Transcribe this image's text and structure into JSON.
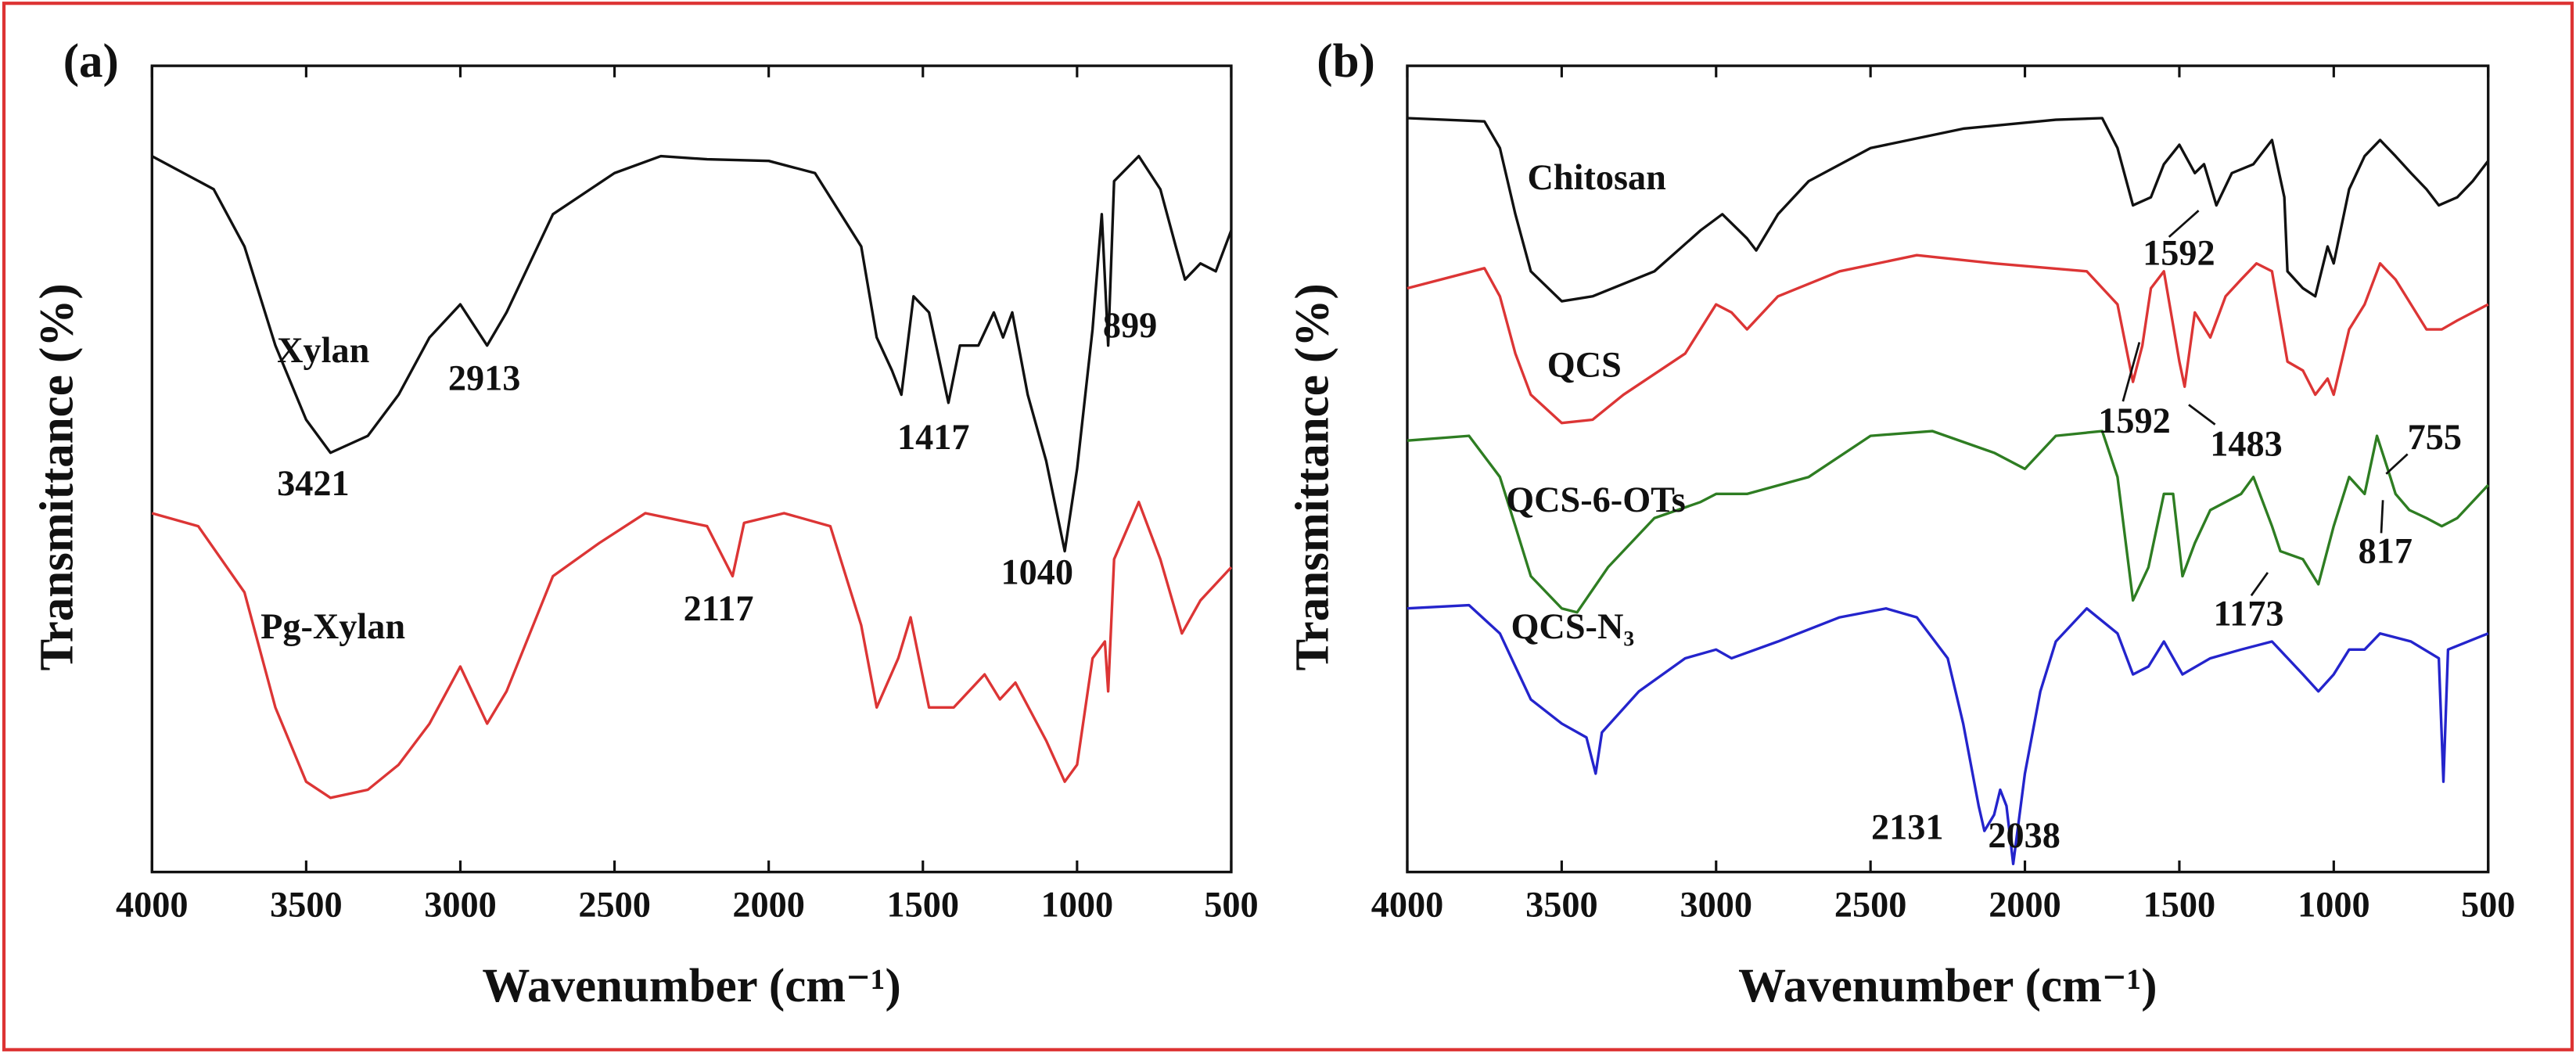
{
  "chart_data": [
    {
      "type": "line",
      "title": "(a)",
      "xlabel": "Wavenumber (cm⁻¹)",
      "ylabel": "Transmittance (%)",
      "xlim": [
        4000,
        500
      ],
      "xticks": [
        4000,
        3500,
        3000,
        2500,
        2000,
        1500,
        1000,
        500
      ],
      "ylim": [
        0,
        100
      ],
      "series": [
        {
          "name": "Xylan",
          "color": "#111111",
          "x": [
            4000,
            3800,
            3700,
            3600,
            3500,
            3421,
            3300,
            3200,
            3100,
            3000,
            2913,
            2850,
            2700,
            2500,
            2350,
            2200,
            2000,
            1850,
            1700,
            1650,
            1600,
            1570,
            1530,
            1480,
            1417,
            1380,
            1320,
            1270,
            1240,
            1210,
            1160,
            1100,
            1040,
            1000,
            950,
            920,
            899,
            880,
            800,
            730,
            680,
            650,
            600,
            550,
            500
          ],
          "values": [
            88.8,
            84.7,
            77.6,
            65.3,
            56.1,
            52.0,
            54.1,
            59.2,
            66.3,
            70.4,
            65.3,
            69.4,
            81.6,
            86.7,
            88.8,
            88.4,
            88.2,
            86.7,
            77.6,
            66.3,
            62.2,
            59.2,
            71.4,
            69.4,
            58.2,
            65.3,
            65.3,
            69.4,
            66.3,
            69.4,
            59.2,
            51.0,
            39.8,
            50.0,
            67.3,
            81.6,
            65.3,
            85.7,
            88.8,
            84.7,
            77.6,
            73.5,
            75.5,
            74.5,
            79.6
          ]
        },
        {
          "name": "Pg-Xylan",
          "color": "#dc3535",
          "x": [
            4000,
            3850,
            3700,
            3600,
            3500,
            3421,
            3300,
            3200,
            3100,
            3000,
            2913,
            2850,
            2700,
            2550,
            2400,
            2200,
            2117,
            2080,
            1950,
            1800,
            1700,
            1650,
            1580,
            1540,
            1480,
            1400,
            1300,
            1250,
            1200,
            1100,
            1040,
            1000,
            950,
            910,
            899,
            880,
            800,
            730,
            660,
            600,
            500
          ],
          "values": [
            44.5,
            42.9,
            34.7,
            20.4,
            11.2,
            9.2,
            10.2,
            13.3,
            18.4,
            25.5,
            18.4,
            22.4,
            36.7,
            40.8,
            44.5,
            42.9,
            36.7,
            43.3,
            44.5,
            42.9,
            30.6,
            20.4,
            26.5,
            31.6,
            20.4,
            20.4,
            24.5,
            21.4,
            23.5,
            16.3,
            11.2,
            13.3,
            26.5,
            28.6,
            22.4,
            38.8,
            45.9,
            38.8,
            29.6,
            33.7,
            37.8
          ]
        }
      ],
      "annotations": [
        "2913",
        "3421",
        "1417",
        "899",
        "1040",
        "2117"
      ]
    },
    {
      "type": "line",
      "title": "(b)",
      "xlabel": "Wavenumber (cm⁻¹)",
      "ylabel": "Transmittance (%)",
      "xlim": [
        4000,
        500
      ],
      "xticks": [
        4000,
        3500,
        3000,
        2500,
        2000,
        1500,
        1000,
        500
      ],
      "ylim": [
        0,
        100
      ],
      "series": [
        {
          "name": "Chitosan",
          "color": "#111111",
          "x": [
            4000,
            3750,
            3700,
            3650,
            3600,
            3500,
            3400,
            3200,
            3050,
            2980,
            2900,
            2870,
            2800,
            2700,
            2500,
            2200,
            1900,
            1750,
            1700,
            1650,
            1592,
            1550,
            1500,
            1450,
            1420,
            1380,
            1330,
            1260,
            1200,
            1160,
            1150,
            1100,
            1060,
            1020,
            1000,
            950,
            900,
            850,
            800,
            750,
            700,
            660,
            600,
            550,
            500
          ],
          "values": [
            93.5,
            93.1,
            89.8,
            81.6,
            74.5,
            70.8,
            71.4,
            74.5,
            79.6,
            81.6,
            78.6,
            77.1,
            81.6,
            85.7,
            89.8,
            92.2,
            93.3,
            93.5,
            89.8,
            82.7,
            83.7,
            87.8,
            90.2,
            86.7,
            87.8,
            82.7,
            86.7,
            87.8,
            90.8,
            83.7,
            74.5,
            72.4,
            71.4,
            77.6,
            75.5,
            84.7,
            88.8,
            90.8,
            88.8,
            86.7,
            84.7,
            82.7,
            83.7,
            85.7,
            88.2
          ]
        },
        {
          "name": "QCS",
          "color": "#dc3535",
          "x": [
            4000,
            3750,
            3700,
            3650,
            3600,
            3500,
            3400,
            3300,
            3100,
            3000,
            2950,
            2900,
            2800,
            2600,
            2350,
            2100,
            1800,
            1700,
            1650,
            1620,
            1592,
            1550,
            1500,
            1483,
            1450,
            1400,
            1350,
            1300,
            1250,
            1200,
            1150,
            1100,
            1060,
            1020,
            1000,
            950,
            900,
            850,
            800,
            750,
            700,
            650,
            600,
            500
          ],
          "values": [
            72.4,
            74.9,
            71.4,
            64.3,
            59.2,
            55.7,
            56.1,
            59.2,
            64.3,
            70.4,
            69.4,
            67.3,
            71.4,
            74.5,
            76.5,
            75.5,
            74.5,
            70.4,
            60.8,
            65.3,
            72.4,
            74.5,
            63.3,
            60.2,
            69.4,
            66.3,
            71.4,
            73.5,
            75.5,
            74.5,
            63.3,
            62.2,
            59.2,
            61.2,
            59.2,
            67.3,
            70.4,
            75.5,
            73.5,
            70.4,
            67.3,
            67.3,
            68.4,
            70.4
          ]
        },
        {
          "name": "QCS-6-OTs",
          "color": "#2e7d22",
          "x": [
            4000,
            3800,
            3700,
            3650,
            3600,
            3500,
            3450,
            3350,
            3200,
            3050,
            3000,
            2900,
            2700,
            2500,
            2300,
            2100,
            2000,
            1900,
            1750,
            1700,
            1650,
            1600,
            1550,
            1520,
            1490,
            1450,
            1400,
            1300,
            1260,
            1200,
            1173,
            1100,
            1050,
            1000,
            950,
            900,
            860,
            817,
            800,
            755,
            700,
            650,
            600,
            500
          ],
          "values": [
            53.5,
            54.1,
            49.0,
            42.9,
            36.7,
            32.7,
            32.2,
            37.8,
            43.9,
            45.9,
            46.9,
            46.9,
            49.0,
            54.1,
            54.7,
            52.0,
            50.0,
            54.1,
            54.7,
            49.0,
            33.7,
            37.8,
            46.9,
            46.9,
            36.7,
            40.8,
            44.9,
            46.9,
            49.0,
            42.9,
            39.8,
            38.8,
            35.7,
            42.9,
            49.0,
            46.9,
            54.1,
            49.0,
            46.9,
            44.9,
            43.9,
            42.9,
            43.9,
            48.0
          ]
        },
        {
          "name": "QCS-N₃",
          "color": "#2424cc",
          "x": [
            4000,
            3800,
            3700,
            3650,
            3600,
            3500,
            3420,
            3390,
            3370,
            3250,
            3100,
            3000,
            2950,
            2800,
            2600,
            2450,
            2350,
            2250,
            2200,
            2150,
            2131,
            2100,
            2080,
            2060,
            2038,
            2000,
            1950,
            1900,
            1800,
            1700,
            1650,
            1600,
            1550,
            1490,
            1400,
            1300,
            1200,
            1100,
            1050,
            1000,
            950,
            900,
            850,
            750,
            660,
            645,
            630,
            500
          ],
          "values": [
            32.7,
            33.1,
            29.6,
            25.5,
            21.4,
            18.4,
            16.7,
            12.2,
            17.3,
            22.4,
            26.5,
            27.6,
            26.5,
            28.6,
            31.6,
            32.7,
            31.6,
            26.5,
            18.4,
            8.2,
            5.1,
            7.1,
            10.2,
            8.2,
            1.0,
            12.2,
            22.4,
            28.6,
            32.7,
            29.6,
            24.5,
            25.5,
            28.6,
            24.5,
            26.5,
            27.6,
            28.6,
            24.5,
            22.4,
            24.5,
            27.6,
            27.6,
            29.6,
            28.6,
            26.5,
            11.2,
            27.6,
            29.6
          ]
        }
      ],
      "annotations": [
        "1592",
        "1592",
        "1483",
        "755",
        "817",
        "1173",
        "2131",
        "2038"
      ]
    }
  ]
}
